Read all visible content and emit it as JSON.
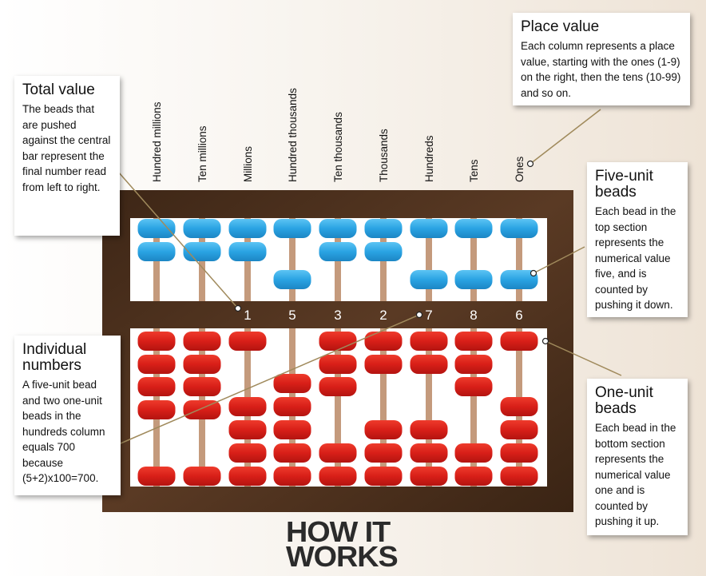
{
  "columns": [
    {
      "label": "Hundred millions",
      "value": "",
      "top_down": false,
      "bottom_up": 4
    },
    {
      "label": "Ten millions",
      "value": "",
      "top_down": false,
      "bottom_up": 4
    },
    {
      "label": "Millions",
      "value": "1",
      "top_down": false,
      "bottom_up": 1
    },
    {
      "label": "Hundred thousands",
      "value": "5",
      "top_down": true,
      "bottom_up": 0
    },
    {
      "label": "Ten thousands",
      "value": "3",
      "top_down": false,
      "bottom_up": 3
    },
    {
      "label": "Thousands",
      "value": "2",
      "top_down": false,
      "bottom_up": 2
    },
    {
      "label": "Hundreds",
      "value": "7",
      "top_down": true,
      "bottom_up": 2
    },
    {
      "label": "Tens",
      "value": "8",
      "top_down": true,
      "bottom_up": 3
    },
    {
      "label": "Ones",
      "value": "6",
      "top_down": true,
      "bottom_up": 1
    }
  ],
  "callouts": {
    "place_value": {
      "title": "Place value",
      "body": "Each column represents a place value, starting with the ones (1-9) on the right, then the tens (10-99) and so on."
    },
    "total_value": {
      "title": "Total value",
      "body": "The beads that are pushed against the central bar represent the final number read from left to right."
    },
    "five_unit": {
      "title": "Five-unit beads",
      "body": "Each bead in the top section represents the numerical value five, and is counted by pushing it down."
    },
    "individual": {
      "title": "Individual numbers",
      "body": "A five-unit bead and two one-unit beads in the hundreds column equals 700 because (5+2)x100=700."
    },
    "one_unit": {
      "title": "One-unit beads",
      "body": "Each bead in the bottom section represents the numerical value one and is counted by pushing it up."
    }
  },
  "logo": {
    "line1": "HOW IT",
    "line2": "WORKS"
  },
  "colors": {
    "frame": "#4a2e1c",
    "panel": "#ffffff",
    "rod": "#c49a7c",
    "upper_bead": "#2fa8e6",
    "lower_bead": "#d9201a",
    "leader": "#a08a5c"
  }
}
